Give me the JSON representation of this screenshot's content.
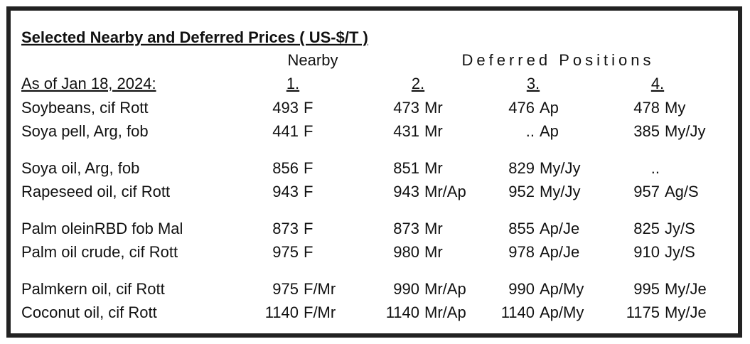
{
  "title": "Selected Nearby and Deferred Prices  ( US-$/T )",
  "header": {
    "nearby": "Nearby",
    "deferred": "Deferred Positions",
    "as_of": "As of Jan 18, 2024:",
    "positions": [
      "1.",
      "2.",
      "3.",
      "4."
    ]
  },
  "groups": [
    [
      {
        "name": "Soybeans, cif Rott",
        "cells": [
          {
            "price": "493",
            "period": "F"
          },
          {
            "price": "473",
            "period": "Mr"
          },
          {
            "price": "476",
            "period": "Ap"
          },
          {
            "price": "478",
            "period": "My"
          }
        ]
      },
      {
        "name": "Soya pell, Arg, fob",
        "cells": [
          {
            "price": "441",
            "period": "F"
          },
          {
            "price": "431",
            "period": "Mr"
          },
          {
            "price": "..",
            "period": "Ap"
          },
          {
            "price": "385",
            "period": "My/Jy"
          }
        ]
      }
    ],
    [
      {
        "name": "Soya oil, Arg, fob",
        "cells": [
          {
            "price": "856",
            "period": "F"
          },
          {
            "price": "851",
            "period": "Mr"
          },
          {
            "price": "829",
            "period": "My/Jy"
          },
          {
            "price": ".."
          }
        ]
      },
      {
        "name": "Rapeseed oil, cif Rott",
        "cells": [
          {
            "price": "943",
            "period": "F"
          },
          {
            "price": "943",
            "period": "Mr/Ap"
          },
          {
            "price": "952",
            "period": "My/Jy"
          },
          {
            "price": "957",
            "period": "Ag/S"
          }
        ]
      }
    ],
    [
      {
        "name": "Palm oleinRBD fob Mal",
        "cells": [
          {
            "price": "873",
            "period": "F"
          },
          {
            "price": "873",
            "period": "Mr"
          },
          {
            "price": "855",
            "period": "Ap/Je"
          },
          {
            "price": "825",
            "period": "Jy/S"
          }
        ]
      },
      {
        "name": "Palm oil crude, cif Rott",
        "cells": [
          {
            "price": "975",
            "period": "F"
          },
          {
            "price": "980",
            "period": "Mr"
          },
          {
            "price": "978",
            "period": "Ap/Je"
          },
          {
            "price": "910",
            "period": "Jy/S"
          }
        ]
      }
    ],
    [
      {
        "name": "Palmkern oil, cif Rott",
        "cells": [
          {
            "price": "975",
            "period": "F/Mr"
          },
          {
            "price": "990",
            "period": "Mr/Ap"
          },
          {
            "price": "990",
            "period": "Ap/My"
          },
          {
            "price": "995",
            "period": "My/Je"
          }
        ]
      },
      {
        "name": "Coconut oil, cif Rott",
        "cells": [
          {
            "price": "1140",
            "period": "F/Mr"
          },
          {
            "price": "1140",
            "period": "Mr/Ap"
          },
          {
            "price": "1140",
            "period": "Ap/My"
          },
          {
            "price": "1175",
            "period": "My/Je"
          }
        ]
      }
    ]
  ]
}
